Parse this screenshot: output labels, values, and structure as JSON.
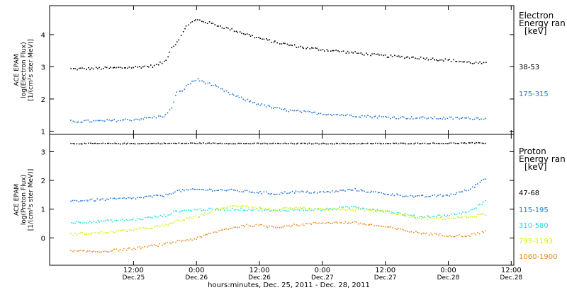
{
  "chart_data": [
    {
      "type": "scatter",
      "panel": "electron",
      "ylabel": [
        "ACE EPAM",
        "log(Electron Flux)",
        "[1/(cm²s ster MeV)]"
      ],
      "ylim": [
        0.9,
        4.9
      ],
      "yticks": [
        "1",
        "2",
        "3",
        "4"
      ],
      "legend_title": [
        "Electron",
        "Energy ran",
        "[keV]"
      ],
      "legend_placement": "right",
      "series": [
        {
          "name": "38-53",
          "color": "#000000",
          "x": [
            "2011-12-25 00:00",
            "2011-12-25 06:00",
            "2011-12-25 12:00",
            "2011-12-25 16:00",
            "2011-12-25 18:00",
            "2011-12-25 19:00",
            "2011-12-25 20:00",
            "2011-12-25 21:00",
            "2011-12-25 22:00",
            "2011-12-25 23:00",
            "2011-12-26 00:00",
            "2011-12-26 03:00",
            "2011-12-26 06:00",
            "2011-12-26 09:00",
            "2011-12-26 12:00",
            "2011-12-26 15:00",
            "2011-12-26 18:00",
            "2011-12-26 21:00",
            "2011-12-27 00:00",
            "2011-12-27 06:00",
            "2011-12-27 12:00",
            "2011-12-27 18:00",
            "2011-12-28 00:00",
            "2011-12-28 04:00",
            "2011-12-28 07:00"
          ],
          "values": [
            2.95,
            2.97,
            3.0,
            3.05,
            3.2,
            3.6,
            3.75,
            4.0,
            4.3,
            4.4,
            4.48,
            4.35,
            4.2,
            4.05,
            3.9,
            3.78,
            3.68,
            3.6,
            3.55,
            3.45,
            3.35,
            3.3,
            3.22,
            3.15,
            3.12
          ]
        },
        {
          "name": "175-315",
          "color": "#1f77d4",
          "x": [
            "2011-12-25 00:00",
            "2011-12-25 06:00",
            "2011-12-25 12:00",
            "2011-12-25 16:00",
            "2011-12-25 18:00",
            "2011-12-25 19:00",
            "2011-12-25 20:00",
            "2011-12-25 21:00",
            "2011-12-25 22:00",
            "2011-12-25 23:00",
            "2011-12-26 00:00",
            "2011-12-26 03:00",
            "2011-12-26 06:00",
            "2011-12-26 09:00",
            "2011-12-26 12:00",
            "2011-12-26 15:00",
            "2011-12-26 18:00",
            "2011-12-26 21:00",
            "2011-12-27 00:00",
            "2011-12-27 06:00",
            "2011-12-27 12:00",
            "2011-12-27 18:00",
            "2011-12-28 00:00",
            "2011-12-28 04:00",
            "2011-12-28 07:00"
          ],
          "values": [
            1.32,
            1.33,
            1.38,
            1.45,
            1.5,
            1.7,
            2.2,
            2.25,
            2.4,
            2.55,
            2.62,
            2.45,
            2.2,
            2.0,
            1.85,
            1.72,
            1.65,
            1.6,
            1.56,
            1.5,
            1.45,
            1.43,
            1.42,
            1.42,
            1.42
          ]
        }
      ]
    },
    {
      "type": "scatter",
      "panel": "proton",
      "ylabel": [
        "ACE EPAM",
        "log(Proton Flux)",
        "[1/(cm²s ster MeV)]"
      ],
      "ylim": [
        -0.95,
        3.6
      ],
      "yticks": [
        "0",
        "1",
        "2",
        "3"
      ],
      "legend_title": [
        "Proton",
        "Energy ran",
        "[keV]"
      ],
      "legend_placement": "right",
      "xlabel": "hours:minutes, Dec. 25, 2011 - Dec. 28, 2011",
      "xticks": [
        {
          "time": "12:00",
          "date": "Dec.25"
        },
        {
          "time": "0:00",
          "date": "Dec.26"
        },
        {
          "time": "12:00",
          "date": "Dec.26"
        },
        {
          "time": "0:00",
          "date": "Dec.27"
        },
        {
          "time": "12:00",
          "date": "Dec.27"
        },
        {
          "time": "0:00",
          "date": "Dec.28"
        },
        {
          "time": "12:00",
          "date": "Dec.28"
        }
      ],
      "series": [
        {
          "name": "47-68",
          "color": "#000000",
          "x": [
            "2011-12-25 00:00",
            "2011-12-25 12:00",
            "2011-12-26 00:00",
            "2011-12-26 12:00",
            "2011-12-27 00:00",
            "2011-12-27 12:00",
            "2011-12-28 00:00",
            "2011-12-28 07:00"
          ],
          "values": [
            3.3,
            3.3,
            3.31,
            3.3,
            3.3,
            3.3,
            3.31,
            3.32
          ]
        },
        {
          "name": "115-195",
          "color": "#1f77d4",
          "x": [
            "2011-12-25 00:00",
            "2011-12-25 06:00",
            "2011-12-25 12:00",
            "2011-12-25 18:00",
            "2011-12-25 20:00",
            "2011-12-26 00:00",
            "2011-12-26 06:00",
            "2011-12-26 12:00",
            "2011-12-26 15:00",
            "2011-12-26 18:00",
            "2011-12-27 00:00",
            "2011-12-27 06:00",
            "2011-12-27 12:00",
            "2011-12-27 18:00",
            "2011-12-28 00:00",
            "2011-12-28 04:00",
            "2011-12-28 07:00"
          ],
          "values": [
            1.3,
            1.35,
            1.4,
            1.5,
            1.65,
            1.7,
            1.68,
            1.6,
            1.55,
            1.62,
            1.6,
            1.7,
            1.55,
            1.45,
            1.5,
            1.7,
            2.1
          ]
        },
        {
          "name": "310-580",
          "color": "#22dcdc",
          "x": [
            "2011-12-25 00:00",
            "2011-12-25 06:00",
            "2011-12-25 12:00",
            "2011-12-25 18:00",
            "2011-12-25 20:00",
            "2011-12-26 00:00",
            "2011-12-26 06:00",
            "2011-12-26 12:00",
            "2011-12-26 15:00",
            "2011-12-26 18:00",
            "2011-12-27 00:00",
            "2011-12-27 06:00",
            "2011-12-27 12:00",
            "2011-12-27 18:00",
            "2011-12-28 00:00",
            "2011-12-28 04:00",
            "2011-12-28 07:00"
          ],
          "values": [
            0.55,
            0.6,
            0.65,
            0.8,
            0.95,
            1.0,
            1.02,
            1.0,
            0.95,
            1.0,
            1.0,
            1.1,
            0.95,
            0.75,
            0.8,
            0.95,
            1.3
          ]
        },
        {
          "name": "795-1193",
          "color": "#d4f000",
          "x": [
            "2011-12-25 00:00",
            "2011-12-25 06:00",
            "2011-12-25 12:00",
            "2011-12-25 18:00",
            "2011-12-25 20:00",
            "2011-12-26 00:00",
            "2011-12-26 03:00",
            "2011-12-26 06:00",
            "2011-12-26 09:00",
            "2011-12-26 12:00",
            "2011-12-26 15:00",
            "2011-12-26 18:00",
            "2011-12-27 00:00",
            "2011-12-27 06:00",
            "2011-12-27 12:00",
            "2011-12-27 18:00",
            "2011-12-28 00:00",
            "2011-12-28 04:00",
            "2011-12-28 07:00"
          ],
          "values": [
            0.15,
            0.2,
            0.3,
            0.45,
            0.6,
            0.75,
            0.95,
            1.1,
            1.15,
            1.05,
            1.0,
            1.05,
            1.0,
            1.0,
            0.95,
            0.7,
            0.7,
            0.75,
            0.85
          ]
        },
        {
          "name": "1060-1900",
          "color": "#ee8a1a",
          "x": [
            "2011-12-25 00:00",
            "2011-12-25 06:00",
            "2011-12-25 12:00",
            "2011-12-25 18:00",
            "2011-12-25 20:00",
            "2011-12-26 00:00",
            "2011-12-26 03:00",
            "2011-12-26 06:00",
            "2011-12-26 09:00",
            "2011-12-26 12:00",
            "2011-12-26 15:00",
            "2011-12-26 18:00",
            "2011-12-27 00:00",
            "2011-12-27 06:00",
            "2011-12-27 12:00",
            "2011-12-27 18:00",
            "2011-12-28 00:00",
            "2011-12-28 04:00",
            "2011-12-28 07:00"
          ],
          "values": [
            -0.45,
            -0.45,
            -0.35,
            -0.2,
            -0.1,
            0.0,
            0.2,
            0.35,
            0.45,
            0.45,
            0.4,
            0.45,
            0.55,
            0.55,
            0.4,
            0.2,
            0.1,
            0.1,
            0.25
          ]
        }
      ]
    }
  ]
}
